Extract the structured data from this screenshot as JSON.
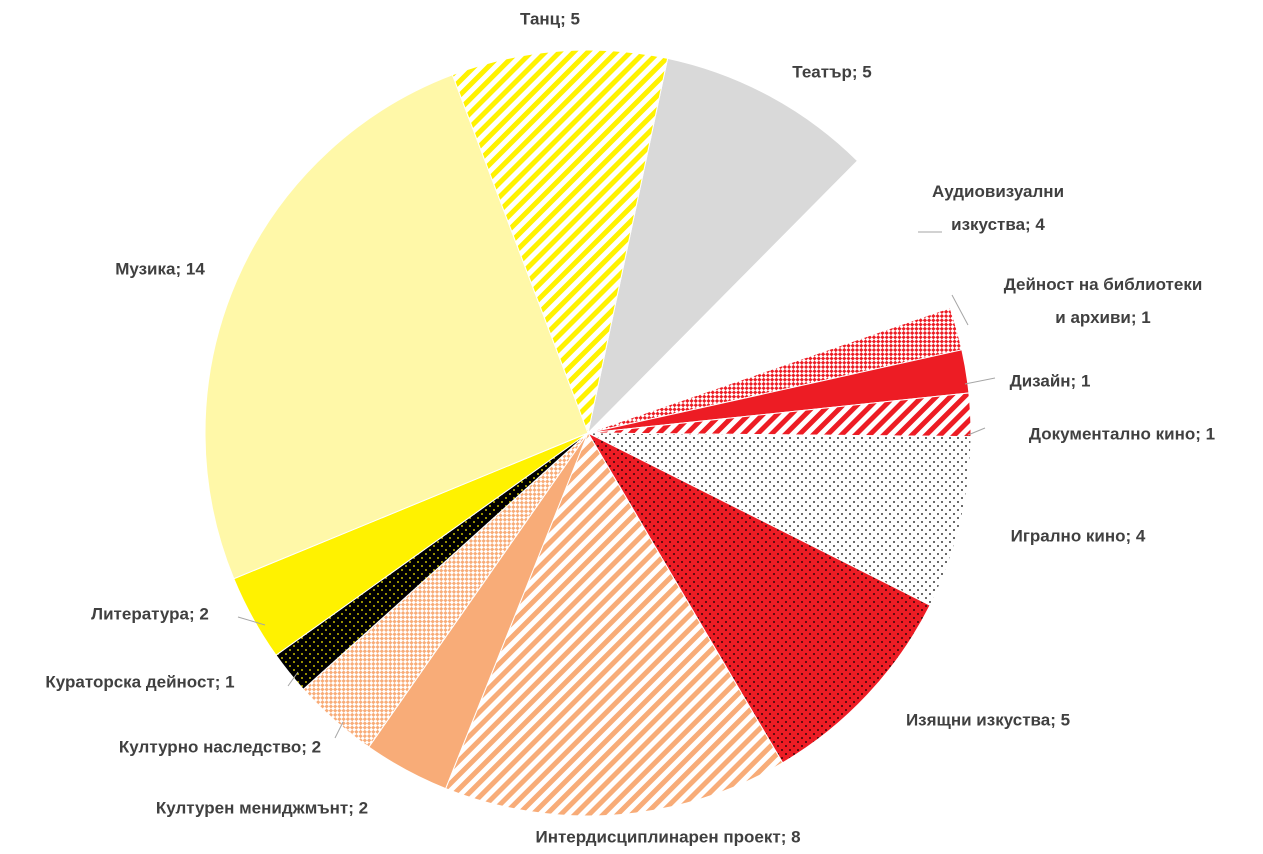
{
  "chart_data": {
    "type": "pie",
    "categories": [
      "Театър",
      "Аудиовизуални изкуства",
      "Дейност на библиотеки и архиви",
      "Дизайн",
      "Документално кино",
      "Игрално кино",
      "Изящни изкуства",
      "Интердисциплинарен проект",
      "Културен мениджмънт",
      "Културно наследство",
      "Кураторска дейност",
      "Литература",
      "Музика",
      "Танц"
    ],
    "values": [
      5,
      4,
      1,
      1,
      1,
      4,
      5,
      8,
      2,
      2,
      1,
      2,
      14,
      5
    ],
    "value_labels": [
      "Театър; 5",
      "Аудиовизуални изкуства; 4",
      "Дейност на библиотеки и архиви; 1",
      "Дизайн; 1",
      "Документално кино; 1",
      "Игрално кино; 4",
      "Изящни изкуства; 5",
      "Интердисциплинарен проект; 8",
      "Културен мениджмънт; 2",
      "Културно наследство; 2",
      "Кураторска дейност; 1",
      "Литература; 2",
      "Музика; 14",
      "Танц; 5"
    ],
    "colors": [
      "#d9d9d9",
      "#ffffff",
      "#ed1c24",
      "#ed1c24",
      "#ed1c24",
      "#000000",
      "#ed1c24",
      "#f8ac78",
      "#f8ac78",
      "#f8ac78",
      "#000000",
      "#fff200",
      "#fff8a8",
      "#fff200"
    ],
    "patterns": [
      "solid",
      "solid",
      "checker",
      "solid",
      "stripes",
      "dots",
      "dots",
      "stripes",
      "solid",
      "checker",
      "dots",
      "solid",
      "solid",
      "stripes"
    ]
  }
}
